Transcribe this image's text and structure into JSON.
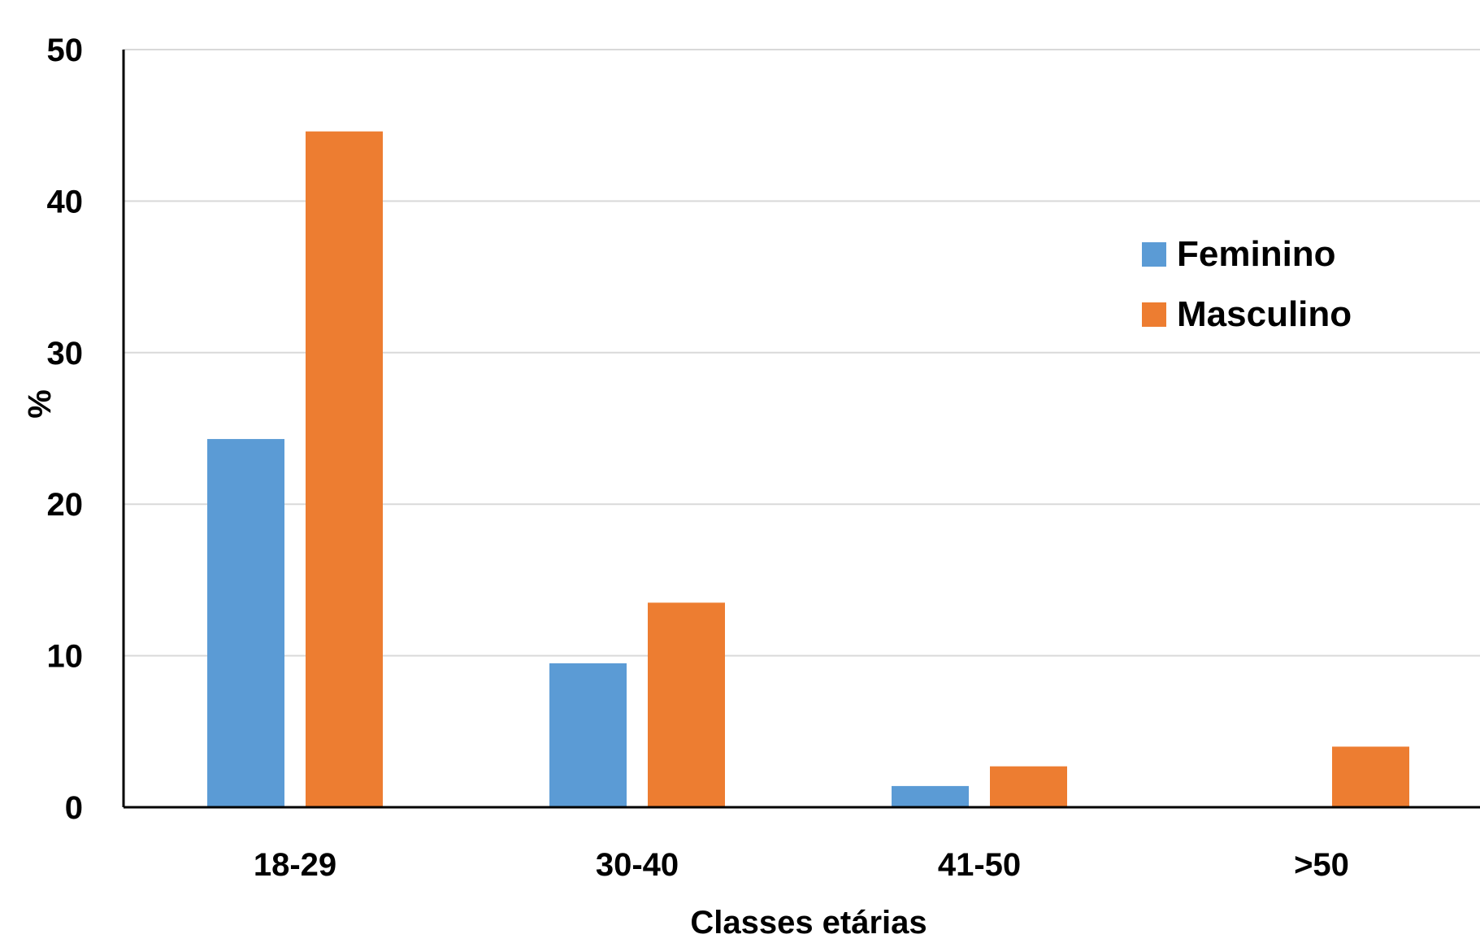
{
  "chart_data": {
    "type": "bar",
    "title": "",
    "xlabel": "Classes etárias",
    "ylabel": "%",
    "categories": [
      "18-29",
      "30-40",
      "41-50",
      ">50"
    ],
    "series": [
      {
        "name": "Feminino",
        "color": "#5b9bd5",
        "values": [
          24.3,
          9.5,
          1.4,
          0
        ]
      },
      {
        "name": "Masculino",
        "color": "#ed7d31",
        "values": [
          44.6,
          13.5,
          2.7,
          4.0
        ]
      }
    ],
    "ylim": [
      0,
      50
    ],
    "yticks": [
      0,
      10,
      20,
      30,
      40,
      50
    ],
    "grid": true,
    "legend_position": "top-right"
  }
}
